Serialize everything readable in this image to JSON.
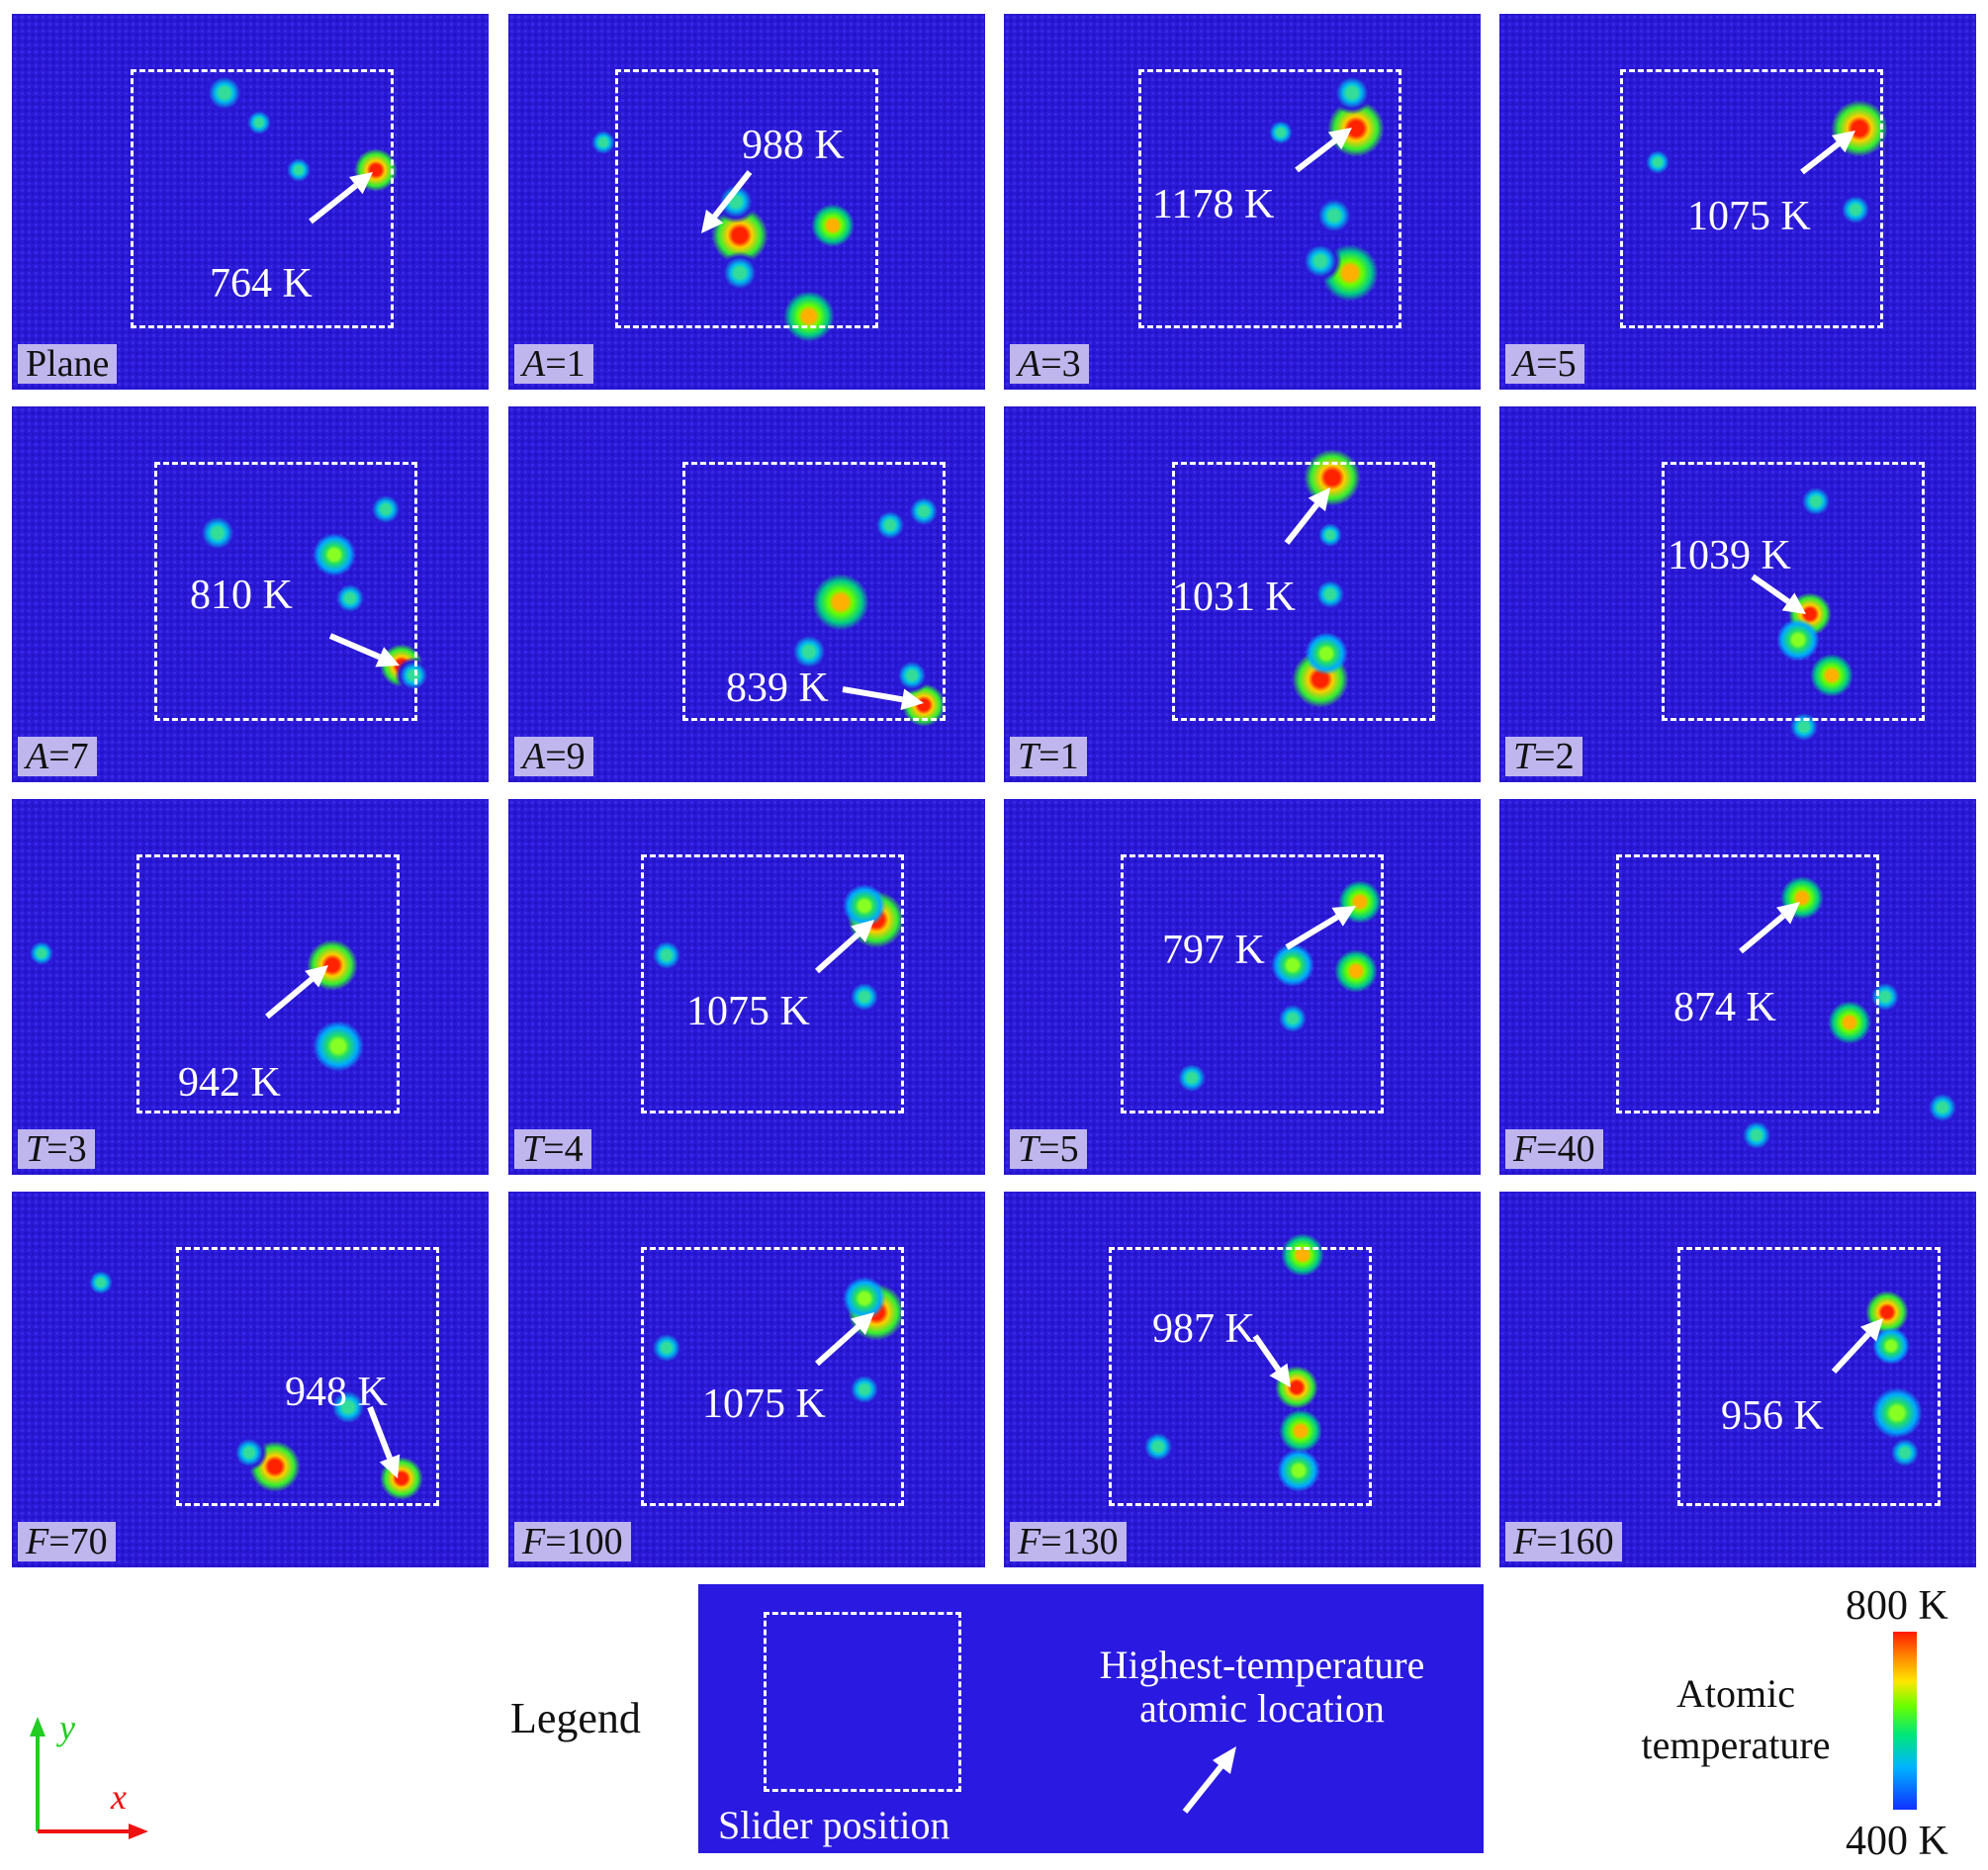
{
  "panels": [
    {
      "label": "Plane",
      "var": "",
      "val": "",
      "temp": "764 K"
    },
    {
      "label": "",
      "var": "A",
      "val": "=1",
      "temp": "988 K"
    },
    {
      "label": "",
      "var": "A",
      "val": "=3",
      "temp": "1178 K"
    },
    {
      "label": "",
      "var": "A",
      "val": "=5",
      "temp": "1075 K"
    },
    {
      "label": "",
      "var": "A",
      "val": "=7",
      "temp": "810 K"
    },
    {
      "label": "",
      "var": "A",
      "val": "=9",
      "temp": "839 K"
    },
    {
      "label": "",
      "var": "T",
      "val": "=1",
      "temp": "1031 K"
    },
    {
      "label": "",
      "var": "T",
      "val": "=2",
      "temp": "1039 K"
    },
    {
      "label": "",
      "var": "T",
      "val": "=3",
      "temp": "942 K"
    },
    {
      "label": "",
      "var": "T",
      "val": "=4",
      "temp": "1075 K"
    },
    {
      "label": "",
      "var": "T",
      "val": "=5",
      "temp": "797 K"
    },
    {
      "label": "",
      "var": "F",
      "val": "=40",
      "temp": "874 K"
    },
    {
      "label": "",
      "var": "F",
      "val": "=70",
      "temp": "948 K"
    },
    {
      "label": "",
      "var": "F",
      "val": "=100",
      "temp": "1075 K"
    },
    {
      "label": "",
      "var": "F",
      "val": "=130",
      "temp": "987 K"
    },
    {
      "label": "",
      "var": "F",
      "val": "=160",
      "temp": "956 K"
    }
  ],
  "legend": {
    "title": "Legend",
    "slider_position": "Slider position",
    "highest_line1": "Highest-temperature",
    "highest_line2": "atomic location"
  },
  "axes": {
    "x": "x",
    "y": "y"
  },
  "colorbar": {
    "title_line1": "Atomic",
    "title_line2": "temperature",
    "max": "800 K",
    "min": "400 K",
    "colors": [
      "#ff1a00",
      "#ffe600",
      "#66ff00",
      "#00b4ff",
      "#1030ff"
    ]
  }
}
